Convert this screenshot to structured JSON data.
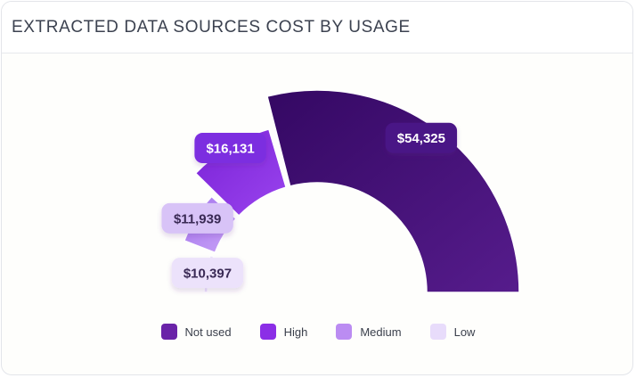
{
  "header": {
    "title": "EXTRACTED DATA SOURCES COST BY USAGE"
  },
  "chart_data": {
    "type": "pie",
    "variant": "half-donut",
    "title": "EXTRACTED DATA SOURCES COST BY USAGE",
    "legend_position": "bottom",
    "categories": [
      "Not used",
      "High",
      "Medium",
      "Low"
    ],
    "values": [
      54325,
      16131,
      11939,
      10397
    ],
    "value_labels": [
      "$54,325",
      "$16,131",
      "$11,939",
      "$10,397"
    ],
    "colors": [
      "#3f0b6e",
      "#8a2be2",
      "#b88af0",
      "#ebe0fb"
    ],
    "label_colors": [
      "#4a1386",
      "#7c2fe0",
      "#d8c3f7",
      "#ece2fb"
    ],
    "label_text_colors": [
      "#ffffff",
      "#ffffff",
      "#3a2a55",
      "#3a2a55"
    ]
  },
  "legend": {
    "items": [
      {
        "label": "Not used",
        "color": "#6a23a8"
      },
      {
        "label": "High",
        "color": "#8b2ee6"
      },
      {
        "label": "Medium",
        "color": "#bb8cf2"
      },
      {
        "label": "Low",
        "color": "#e8dcfb"
      }
    ]
  }
}
